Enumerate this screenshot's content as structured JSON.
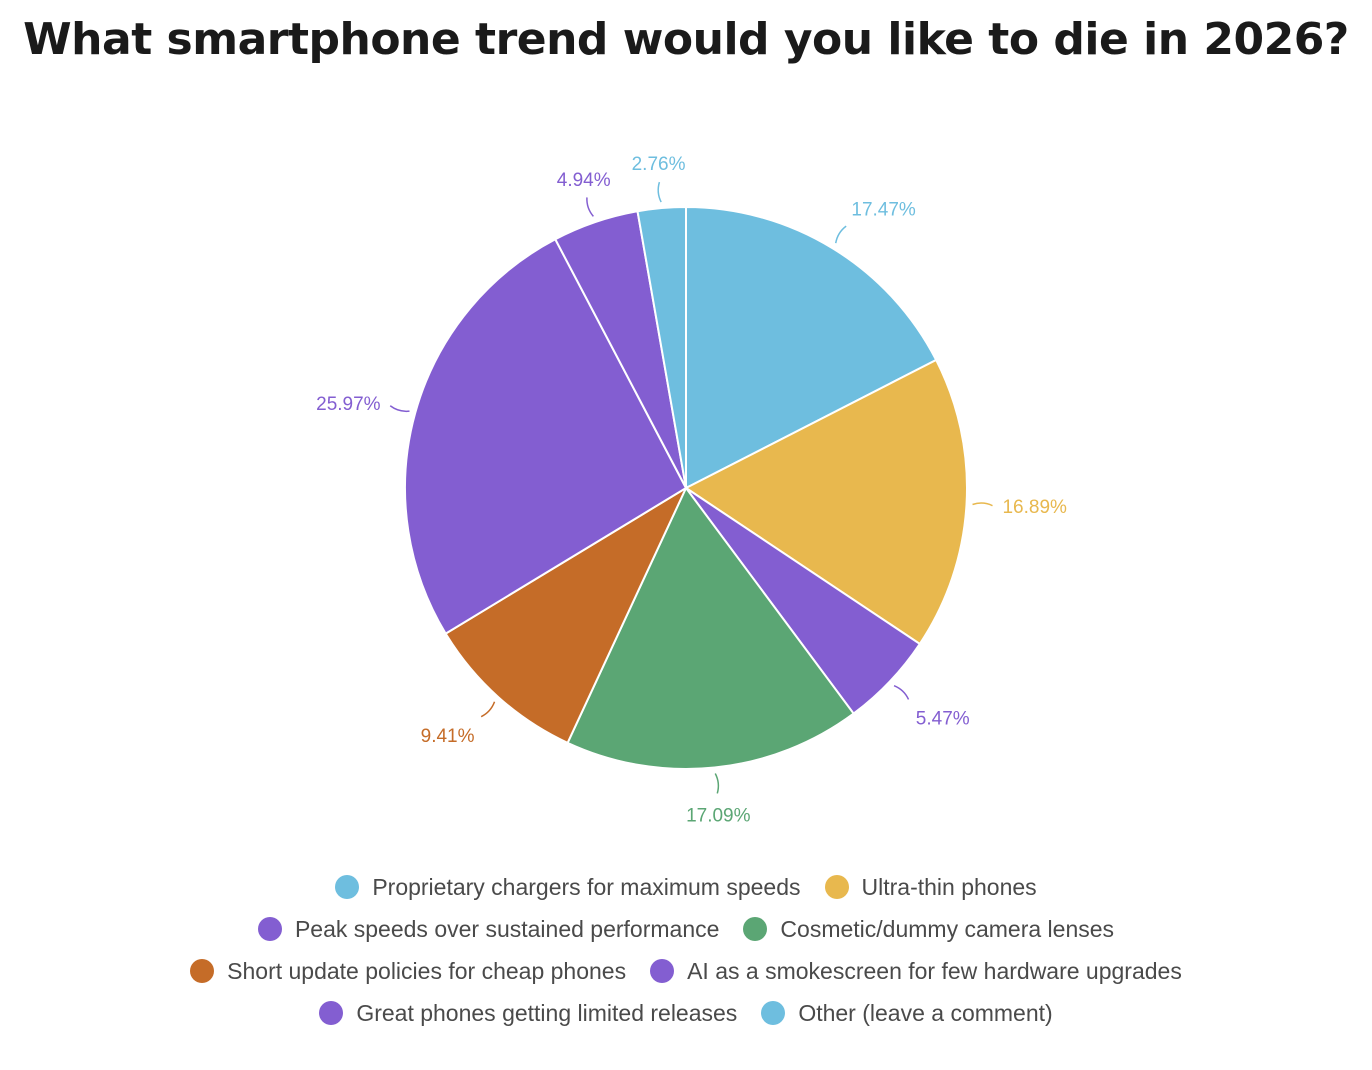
{
  "chart_data": {
    "type": "pie",
    "title": "What smartphone trend would you like to die in 2026?",
    "slices": [
      {
        "label": "Proprietary chargers for maximum speeds",
        "value": 17.47,
        "display": "17.47%",
        "color": "#6EBEDF"
      },
      {
        "label": "Ultra-thin phones",
        "value": 16.89,
        "display": "16.89%",
        "color": "#E8B84E"
      },
      {
        "label": "AI as a smokescreen for few hardware upgrades",
        "value": 5.47,
        "display": "5.47%",
        "color": "#835ED1"
      },
      {
        "label": "Cosmetic/dummy camera lenses",
        "value": 17.09,
        "display": "17.09%",
        "color": "#5BA674"
      },
      {
        "label": "Short update policies for cheap phones",
        "value": 9.41,
        "display": "9.41%",
        "color": "#C56C28"
      },
      {
        "label": "Peak speeds over sustained performance",
        "value": 25.97,
        "display": "25.97%",
        "color": "#835ED1"
      },
      {
        "label": "Great phones getting limited releases",
        "value": 4.94,
        "display": "4.94%",
        "color": "#835ED1"
      },
      {
        "label": "Other (leave a comment)",
        "value": 2.76,
        "display": "2.76%",
        "color": "#6EBEDF"
      }
    ],
    "legend_position": "bottom",
    "legend_rows": [
      [
        "Proprietary chargers for maximum speeds",
        "Ultra-thin phones"
      ],
      [
        "Peak speeds over sustained performance",
        "Cosmetic/dummy camera lenses"
      ],
      [
        "Short update policies for cheap phones",
        "AI as a smokescreen for few hardware upgrades"
      ],
      [
        "Great phones getting limited releases",
        "Other (leave a comment)"
      ]
    ]
  }
}
